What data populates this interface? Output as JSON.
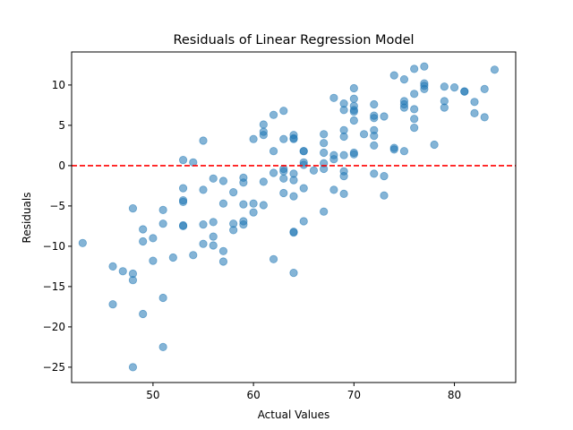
{
  "chart_data": {
    "type": "scatter",
    "title": "Residuals of Linear Regression Model",
    "xlabel": "Actual Values",
    "ylabel": "Residuals",
    "xlim": [
      41.9,
      86.1
    ],
    "ylim": [
      -26.9,
      14.1
    ],
    "xticks": [
      50,
      60,
      70,
      80
    ],
    "xtick_labels": [
      "50",
      "60",
      "70",
      "80"
    ],
    "yticks": [
      -25,
      -20,
      -15,
      -10,
      -5,
      0,
      5,
      10
    ],
    "ytick_labels": [
      "−25",
      "−20",
      "−15",
      "−10",
      "−5",
      "0",
      "5",
      "10"
    ],
    "grid": false,
    "reference_line": {
      "y": 0,
      "color": "#ff0000",
      "style": "dashed"
    },
    "point_color": "#1f77b4",
    "point_alpha": 0.55,
    "points": [
      [
        43,
        -9.6
      ],
      [
        46,
        -12.5
      ],
      [
        46,
        -17.2
      ],
      [
        47,
        -13.1
      ],
      [
        48,
        -5.3
      ],
      [
        48,
        -13.4
      ],
      [
        48,
        -14.2
      ],
      [
        48,
        -25.0
      ],
      [
        49,
        -7.9
      ],
      [
        49,
        -9.4
      ],
      [
        49,
        -18.4
      ],
      [
        50,
        -9.0
      ],
      [
        50,
        -11.8
      ],
      [
        51,
        -5.5
      ],
      [
        51,
        -7.2
      ],
      [
        51,
        -16.4
      ],
      [
        51,
        -22.5
      ],
      [
        52,
        -11.4
      ],
      [
        53,
        0.7
      ],
      [
        53,
        -2.8
      ],
      [
        53,
        -4.3
      ],
      [
        53,
        -4.5
      ],
      [
        53,
        -7.4
      ],
      [
        53,
        -7.5
      ],
      [
        54,
        0.4
      ],
      [
        54,
        -11.1
      ],
      [
        55,
        3.1
      ],
      [
        55,
        -3.0
      ],
      [
        55,
        -7.3
      ],
      [
        55,
        -9.7
      ],
      [
        56,
        -1.6
      ],
      [
        56,
        -7.0
      ],
      [
        56,
        -8.8
      ],
      [
        56,
        -9.9
      ],
      [
        57,
        -1.9
      ],
      [
        57,
        -4.7
      ],
      [
        57,
        -10.6
      ],
      [
        57,
        -11.9
      ],
      [
        58,
        -3.3
      ],
      [
        58,
        -7.2
      ],
      [
        58,
        -8.0
      ],
      [
        59,
        -1.5
      ],
      [
        59,
        -2.1
      ],
      [
        59,
        -4.8
      ],
      [
        59,
        -6.9
      ],
      [
        59,
        -7.3
      ],
      [
        60,
        3.3
      ],
      [
        60,
        -4.7
      ],
      [
        60,
        -5.8
      ],
      [
        61,
        5.1
      ],
      [
        61,
        4.2
      ],
      [
        61,
        3.8
      ],
      [
        61,
        -2.0
      ],
      [
        61,
        -4.9
      ],
      [
        62,
        6.3
      ],
      [
        62,
        1.8
      ],
      [
        62,
        -0.9
      ],
      [
        62,
        -11.6
      ],
      [
        63,
        6.8
      ],
      [
        63,
        3.3
      ],
      [
        63,
        -0.4
      ],
      [
        63,
        -0.7
      ],
      [
        63,
        -1.6
      ],
      [
        63,
        -3.4
      ],
      [
        64,
        3.8
      ],
      [
        64,
        3.4
      ],
      [
        64,
        3.3
      ],
      [
        64,
        -1.0
      ],
      [
        64,
        -1.8
      ],
      [
        64,
        -3.8
      ],
      [
        64,
        -8.2
      ],
      [
        64,
        -8.3
      ],
      [
        64,
        -13.3
      ],
      [
        65,
        1.8
      ],
      [
        65,
        1.8
      ],
      [
        65,
        0.4
      ],
      [
        65,
        0.1
      ],
      [
        65,
        -2.8
      ],
      [
        65,
        -6.9
      ],
      [
        66,
        -0.6
      ],
      [
        67,
        3.9
      ],
      [
        67,
        2.8
      ],
      [
        67,
        1.6
      ],
      [
        67,
        0.3
      ],
      [
        67,
        -0.4
      ],
      [
        67,
        -5.7
      ],
      [
        68,
        8.4
      ],
      [
        68,
        1.3
      ],
      [
        68,
        0.8
      ],
      [
        68,
        -3.0
      ],
      [
        69,
        7.7
      ],
      [
        69,
        6.9
      ],
      [
        69,
        4.4
      ],
      [
        69,
        3.6
      ],
      [
        69,
        1.3
      ],
      [
        69,
        -0.7
      ],
      [
        69,
        -1.3
      ],
      [
        69,
        -3.5
      ],
      [
        70,
        9.6
      ],
      [
        70,
        8.3
      ],
      [
        70,
        7.4
      ],
      [
        70,
        6.9
      ],
      [
        70,
        6.7
      ],
      [
        70,
        5.6
      ],
      [
        70,
        1.6
      ],
      [
        70,
        1.4
      ],
      [
        71,
        3.9
      ],
      [
        72,
        7.6
      ],
      [
        72,
        6.2
      ],
      [
        72,
        5.9
      ],
      [
        72,
        4.4
      ],
      [
        72,
        3.7
      ],
      [
        72,
        2.5
      ],
      [
        72,
        -1.0
      ],
      [
        73,
        6.1
      ],
      [
        73,
        -1.3
      ],
      [
        73,
        -3.7
      ],
      [
        74,
        11.2
      ],
      [
        74,
        2.2
      ],
      [
        74,
        2.0
      ],
      [
        75,
        10.7
      ],
      [
        75,
        8.0
      ],
      [
        75,
        7.6
      ],
      [
        75,
        7.2
      ],
      [
        75,
        1.8
      ],
      [
        76,
        12.0
      ],
      [
        76,
        8.9
      ],
      [
        76,
        7.0
      ],
      [
        76,
        5.8
      ],
      [
        76,
        4.7
      ],
      [
        77,
        12.3
      ],
      [
        77,
        10.2
      ],
      [
        77,
        9.9
      ],
      [
        77,
        9.5
      ],
      [
        78,
        2.6
      ],
      [
        79,
        9.8
      ],
      [
        79,
        8.0
      ],
      [
        79,
        7.2
      ],
      [
        80,
        9.7
      ],
      [
        81,
        9.2
      ],
      [
        81,
        9.2
      ],
      [
        82,
        7.9
      ],
      [
        82,
        6.5
      ],
      [
        83,
        9.5
      ],
      [
        83,
        6.0
      ],
      [
        84,
        11.9
      ]
    ]
  }
}
